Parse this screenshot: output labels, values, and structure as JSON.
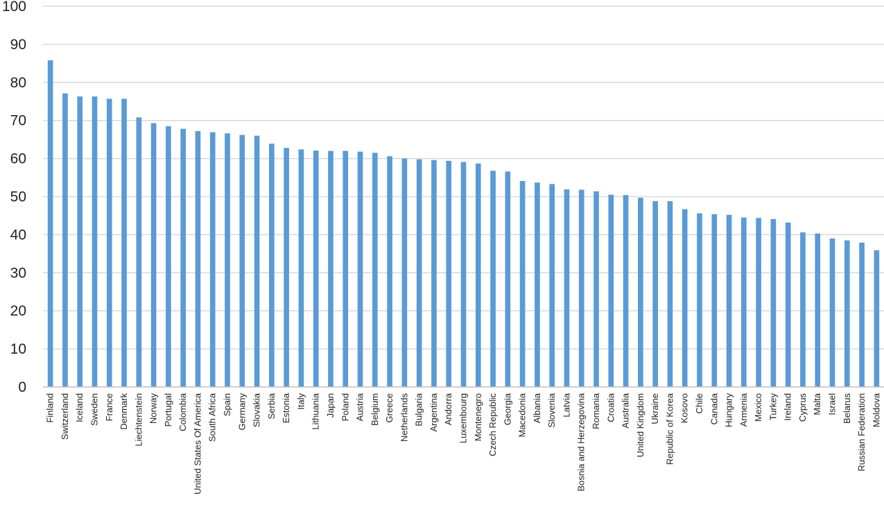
{
  "chart_data": {
    "type": "bar",
    "title": "",
    "xlabel": "",
    "ylabel": "",
    "ylim": [
      0,
      100
    ],
    "yticks": [
      0,
      10,
      20,
      30,
      40,
      50,
      60,
      70,
      80,
      90,
      100
    ],
    "grid": true,
    "legend": "none",
    "bar_color": "#5b9bd5",
    "categories": [
      "Finland",
      "Switzerland",
      "Iceland",
      "Sweden",
      "France",
      "Denmark",
      "Liechtenstein",
      "Norway",
      "Portugal",
      "Colombia",
      "United States Of America",
      "South Africa",
      "Spain",
      "Germany",
      "Slovakia",
      "Serbia",
      "Estonia",
      "Italy",
      "Lithuania",
      "Japan",
      "Poland",
      "Austria",
      "Belgium",
      "Greece",
      "Netherlands",
      "Bulgaria",
      "Argentina",
      "Andorra",
      "Luxembourg",
      "Montenegro",
      "Czech Republic",
      "Georgia",
      "Macedonia",
      "Albania",
      "Slovenia",
      "Latvia",
      "Bosnia and Herzegovina",
      "Romania",
      "Croatia",
      "Australia",
      "United Kingdom",
      "Ukraine",
      "Republic of Korea",
      "Kosovo",
      "Chile",
      "Canada",
      "Hungary",
      "Armenia",
      "Mexico",
      "Turkey",
      "Ireland",
      "Cyprus",
      "Malta",
      "Israel",
      "Belarus",
      "Russian Federation",
      "Moldova"
    ],
    "values": [
      85.8,
      77.1,
      76.3,
      76.3,
      75.7,
      75.7,
      70.8,
      69.3,
      68.5,
      67.8,
      67.2,
      66.9,
      66.6,
      66.2,
      66.0,
      63.9,
      62.8,
      62.4,
      62.1,
      62.0,
      62.0,
      61.8,
      61.5,
      60.6,
      60.0,
      59.8,
      59.6,
      59.4,
      59.1,
      58.7,
      56.8,
      56.6,
      54.1,
      53.7,
      53.3,
      51.9,
      51.8,
      51.4,
      50.5,
      50.4,
      49.7,
      48.8,
      48.8,
      46.7,
      45.6,
      45.4,
      45.2,
      44.5,
      44.4,
      44.1,
      43.2,
      40.6,
      40.3,
      39.0,
      38.5,
      37.9,
      35.9
    ]
  }
}
